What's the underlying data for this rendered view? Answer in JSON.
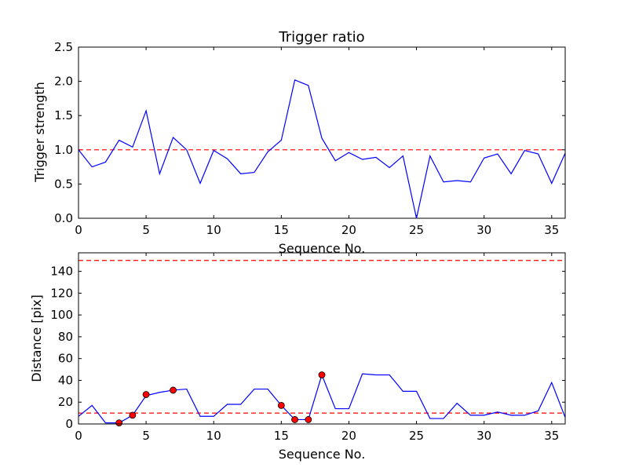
{
  "chart_data": [
    {
      "type": "line",
      "title": "Trigger ratio",
      "xlabel": "Sequence No.",
      "ylabel": "Trigger strength",
      "xlim": [
        0,
        36
      ],
      "ylim": [
        0,
        2.5
      ],
      "xticks": [
        0,
        5,
        10,
        15,
        20,
        25,
        30,
        35
      ],
      "yticks": [
        0.0,
        0.5,
        1.0,
        1.5,
        2.0,
        2.5
      ],
      "ytick_labels": [
        "0.0",
        "0.5",
        "1.0",
        "1.5",
        "2.0",
        "2.5"
      ],
      "grid": false,
      "line_color": "#0000ff",
      "threshold_color": "#ff0000",
      "thresholds": [
        1.0
      ],
      "series": [
        {
          "x": [
            0,
            1,
            2,
            3,
            4,
            5,
            6,
            7,
            8,
            9,
            10,
            11,
            12,
            13,
            14,
            15,
            16,
            17,
            18,
            19,
            20,
            21,
            22,
            23,
            24,
            25,
            26,
            27,
            28,
            29,
            30,
            31,
            32,
            33,
            34,
            35,
            36
          ],
          "values": [
            1.0,
            0.75,
            0.82,
            1.14,
            1.04,
            1.57,
            0.65,
            1.18,
            1.0,
            0.51,
            0.99,
            0.87,
            0.65,
            0.67,
            0.97,
            1.14,
            2.02,
            1.94,
            1.17,
            0.84,
            0.96,
            0.86,
            0.89,
            0.74,
            0.91,
            0.0,
            0.91,
            0.53,
            0.55,
            0.53,
            0.88,
            0.94,
            0.65,
            0.99,
            0.94,
            0.51,
            0.95
          ]
        }
      ]
    },
    {
      "type": "line",
      "title": "",
      "xlabel": "Sequence No.",
      "ylabel": "Distance [pix]",
      "xlim": [
        0,
        36
      ],
      "ylim": [
        0,
        157
      ],
      "xticks": [
        0,
        5,
        10,
        15,
        20,
        25,
        30,
        35
      ],
      "yticks": [
        0,
        20,
        40,
        60,
        80,
        100,
        120,
        140
      ],
      "ytick_labels": [
        "0",
        "20",
        "40",
        "60",
        "80",
        "100",
        "120",
        "140"
      ],
      "grid": false,
      "line_color": "#0000ff",
      "threshold_color": "#ff0000",
      "marker_color": "#ff0000",
      "thresholds": [
        10,
        150
      ],
      "series": [
        {
          "x": [
            0,
            1,
            2,
            3,
            4,
            5,
            6,
            7,
            8,
            9,
            10,
            11,
            12,
            13,
            14,
            15,
            16,
            17,
            18,
            19,
            20,
            21,
            22,
            23,
            24,
            25,
            26,
            27,
            28,
            29,
            30,
            31,
            32,
            33,
            34,
            35,
            36
          ],
          "values": [
            7,
            17,
            1,
            1,
            8,
            26,
            29,
            31,
            32,
            7,
            7,
            18,
            18,
            32,
            32,
            17,
            4,
            4,
            45,
            14,
            14,
            46,
            45,
            45,
            30,
            30,
            5,
            5,
            19,
            8,
            8,
            11,
            8,
            8,
            12,
            38,
            6
          ]
        }
      ],
      "markers": {
        "x": [
          3,
          4,
          5,
          7,
          15,
          16,
          17,
          18
        ],
        "values": [
          1,
          8,
          27,
          31,
          17,
          4,
          4,
          45
        ]
      }
    }
  ]
}
